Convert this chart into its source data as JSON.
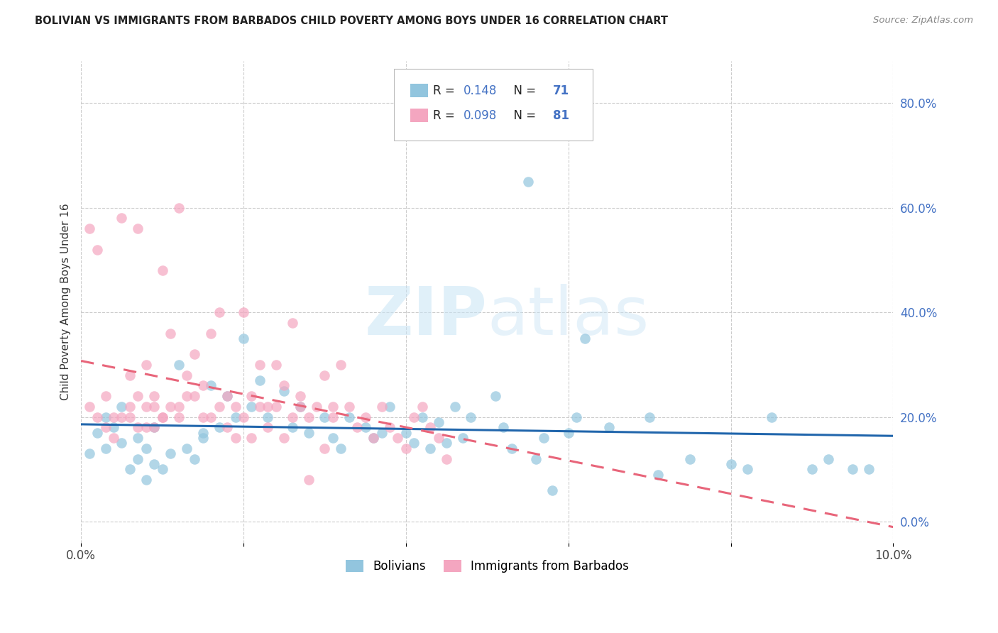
{
  "title": "BOLIVIAN VS IMMIGRANTS FROM BARBADOS CHILD POVERTY AMONG BOYS UNDER 16 CORRELATION CHART",
  "source": "Source: ZipAtlas.com",
  "ylabel": "Child Poverty Among Boys Under 16",
  "right_yticks": [
    "0.0%",
    "20.0%",
    "40.0%",
    "60.0%",
    "80.0%"
  ],
  "right_ytick_vals": [
    0.0,
    0.2,
    0.4,
    0.6,
    0.8
  ],
  "blue_color": "#92c5de",
  "pink_color": "#f4a6c0",
  "blue_line_color": "#2166ac",
  "pink_line_color": "#e8657a",
  "label1": "Bolivians",
  "label2": "Immigrants from Barbados",
  "watermark_zip": "ZIP",
  "watermark_atlas": "atlas",
  "x_min": 0.0,
  "x_max": 0.1,
  "y_min": -0.04,
  "y_max": 0.88,
  "blue_x": [
    0.001,
    0.002,
    0.003,
    0.003,
    0.004,
    0.005,
    0.005,
    0.006,
    0.007,
    0.007,
    0.008,
    0.008,
    0.009,
    0.009,
    0.01,
    0.011,
    0.012,
    0.013,
    0.014,
    0.015,
    0.015,
    0.016,
    0.017,
    0.018,
    0.019,
    0.02,
    0.021,
    0.022,
    0.023,
    0.025,
    0.026,
    0.027,
    0.028,
    0.03,
    0.031,
    0.032,
    0.033,
    0.035,
    0.036,
    0.037,
    0.038,
    0.04,
    0.041,
    0.042,
    0.043,
    0.044,
    0.045,
    0.046,
    0.047,
    0.048,
    0.055,
    0.051,
    0.052,
    0.053,
    0.056,
    0.057,
    0.058,
    0.06,
    0.061,
    0.062,
    0.065,
    0.07,
    0.071,
    0.075,
    0.08,
    0.082,
    0.085,
    0.09,
    0.092,
    0.095,
    0.097
  ],
  "blue_y": [
    0.13,
    0.17,
    0.14,
    0.2,
    0.18,
    0.15,
    0.22,
    0.1,
    0.16,
    0.12,
    0.14,
    0.08,
    0.18,
    0.11,
    0.1,
    0.13,
    0.3,
    0.14,
    0.12,
    0.16,
    0.17,
    0.26,
    0.18,
    0.24,
    0.2,
    0.35,
    0.22,
    0.27,
    0.2,
    0.25,
    0.18,
    0.22,
    0.17,
    0.2,
    0.16,
    0.14,
    0.2,
    0.18,
    0.16,
    0.17,
    0.22,
    0.17,
    0.15,
    0.2,
    0.14,
    0.19,
    0.15,
    0.22,
    0.16,
    0.2,
    0.65,
    0.24,
    0.18,
    0.14,
    0.12,
    0.16,
    0.06,
    0.17,
    0.2,
    0.35,
    0.18,
    0.2,
    0.09,
    0.12,
    0.11,
    0.1,
    0.2,
    0.1,
    0.12,
    0.1,
    0.1
  ],
  "pink_x": [
    0.001,
    0.001,
    0.002,
    0.002,
    0.003,
    0.003,
    0.004,
    0.004,
    0.005,
    0.005,
    0.006,
    0.006,
    0.006,
    0.007,
    0.007,
    0.007,
    0.008,
    0.008,
    0.008,
    0.009,
    0.009,
    0.009,
    0.01,
    0.01,
    0.01,
    0.011,
    0.011,
    0.012,
    0.012,
    0.012,
    0.013,
    0.013,
    0.014,
    0.014,
    0.015,
    0.015,
    0.016,
    0.016,
    0.017,
    0.017,
    0.018,
    0.018,
    0.019,
    0.019,
    0.02,
    0.02,
    0.021,
    0.021,
    0.022,
    0.022,
    0.023,
    0.023,
    0.024,
    0.024,
    0.025,
    0.025,
    0.026,
    0.026,
    0.027,
    0.027,
    0.028,
    0.028,
    0.029,
    0.03,
    0.03,
    0.031,
    0.031,
    0.032,
    0.033,
    0.034,
    0.035,
    0.036,
    0.037,
    0.038,
    0.039,
    0.04,
    0.041,
    0.042,
    0.043,
    0.044,
    0.045
  ],
  "pink_y": [
    0.22,
    0.56,
    0.2,
    0.52,
    0.18,
    0.24,
    0.2,
    0.16,
    0.2,
    0.58,
    0.22,
    0.28,
    0.2,
    0.24,
    0.18,
    0.56,
    0.22,
    0.3,
    0.18,
    0.24,
    0.18,
    0.22,
    0.2,
    0.48,
    0.2,
    0.36,
    0.22,
    0.2,
    0.22,
    0.6,
    0.24,
    0.28,
    0.32,
    0.24,
    0.26,
    0.2,
    0.36,
    0.2,
    0.4,
    0.22,
    0.24,
    0.18,
    0.22,
    0.16,
    0.2,
    0.4,
    0.24,
    0.16,
    0.22,
    0.3,
    0.18,
    0.22,
    0.3,
    0.22,
    0.26,
    0.16,
    0.2,
    0.38,
    0.22,
    0.24,
    0.2,
    0.08,
    0.22,
    0.14,
    0.28,
    0.2,
    0.22,
    0.3,
    0.22,
    0.18,
    0.2,
    0.16,
    0.22,
    0.18,
    0.16,
    0.14,
    0.2,
    0.22,
    0.18,
    0.16,
    0.12
  ]
}
